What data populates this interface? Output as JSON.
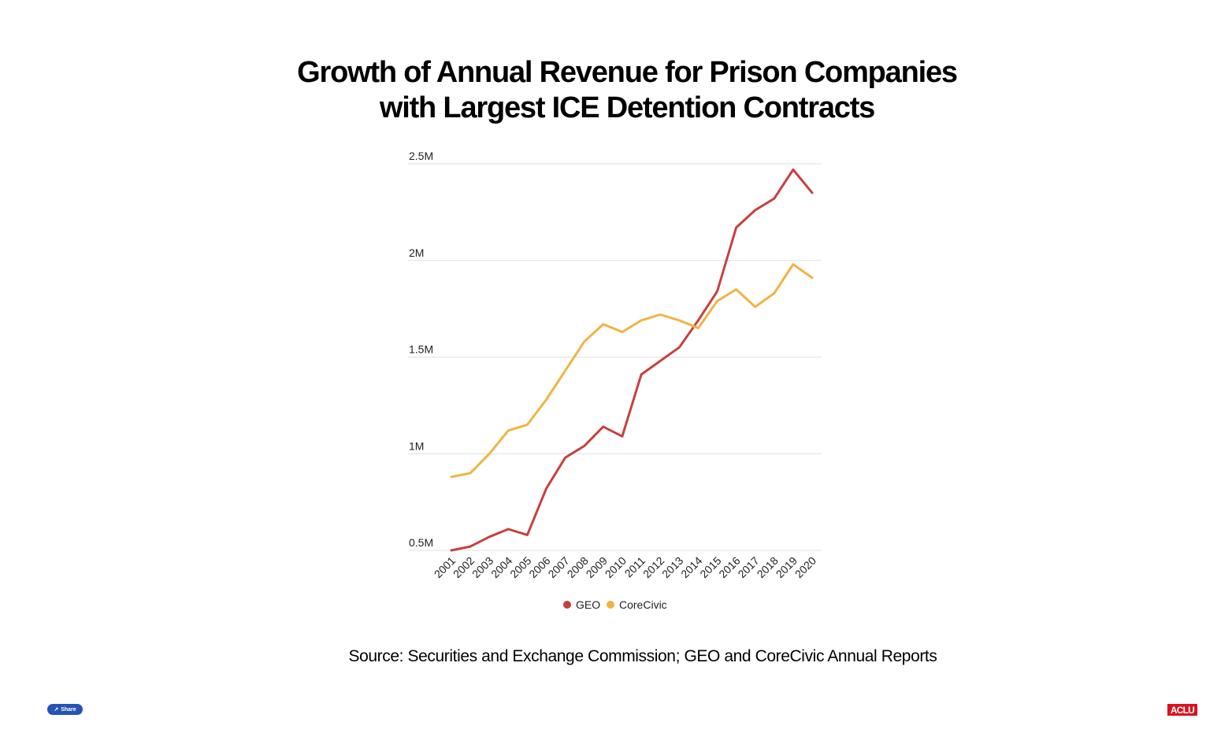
{
  "page": {
    "title_line1": "Growth of Annual Revenue for Prison Companies",
    "title_line2": "with Largest ICE Detention Contracts",
    "source": "Source: Securities and Exchange Commission; GEO and CoreCivic Annual Reports",
    "share_label": "Share",
    "share_icon": "share-icon",
    "logo_text": "ACLU"
  },
  "colors": {
    "geo": "#c7403d",
    "corecivic": "#f0b443",
    "grid": "#e0e0e0",
    "share": "#2553b5",
    "logo": "#d7141e"
  },
  "chart_data": {
    "type": "line",
    "title": "Growth of Annual Revenue for Prison Companies with Largest ICE Detention Contracts",
    "xlabel": "",
    "ylabel": "",
    "ylim": [
      0.5,
      2.5
    ],
    "y_ticks": [
      {
        "value": 0.5,
        "label": "0.5M"
      },
      {
        "value": 1.0,
        "label": "1M"
      },
      {
        "value": 1.5,
        "label": "1.5M"
      },
      {
        "value": 2.0,
        "label": "2M"
      },
      {
        "value": 2.5,
        "label": "2.5M"
      }
    ],
    "categories": [
      "2001",
      "2002",
      "2003",
      "2004",
      "2005",
      "2006",
      "2007",
      "2008",
      "2009",
      "2010",
      "2011",
      "2012",
      "2013",
      "2014",
      "2015",
      "2016",
      "2017",
      "2018",
      "2019",
      "2020"
    ],
    "series": [
      {
        "name": "GEO",
        "color": "#c7403d",
        "values": [
          0.5,
          0.52,
          0.57,
          0.61,
          0.58,
          0.82,
          0.98,
          1.04,
          1.14,
          1.09,
          1.41,
          1.48,
          1.55,
          1.69,
          1.84,
          2.17,
          2.26,
          2.32,
          2.47,
          2.35
        ]
      },
      {
        "name": "CoreCivic",
        "color": "#f0b443",
        "values": [
          0.88,
          0.9,
          1.0,
          1.12,
          1.15,
          1.28,
          1.43,
          1.58,
          1.67,
          1.63,
          1.69,
          1.72,
          1.69,
          1.65,
          1.79,
          1.85,
          1.76,
          1.83,
          1.98,
          1.91
        ]
      }
    ],
    "legend": [
      "GEO",
      "CoreCivic"
    ],
    "legend_position": "bottom-center",
    "grid": true
  }
}
